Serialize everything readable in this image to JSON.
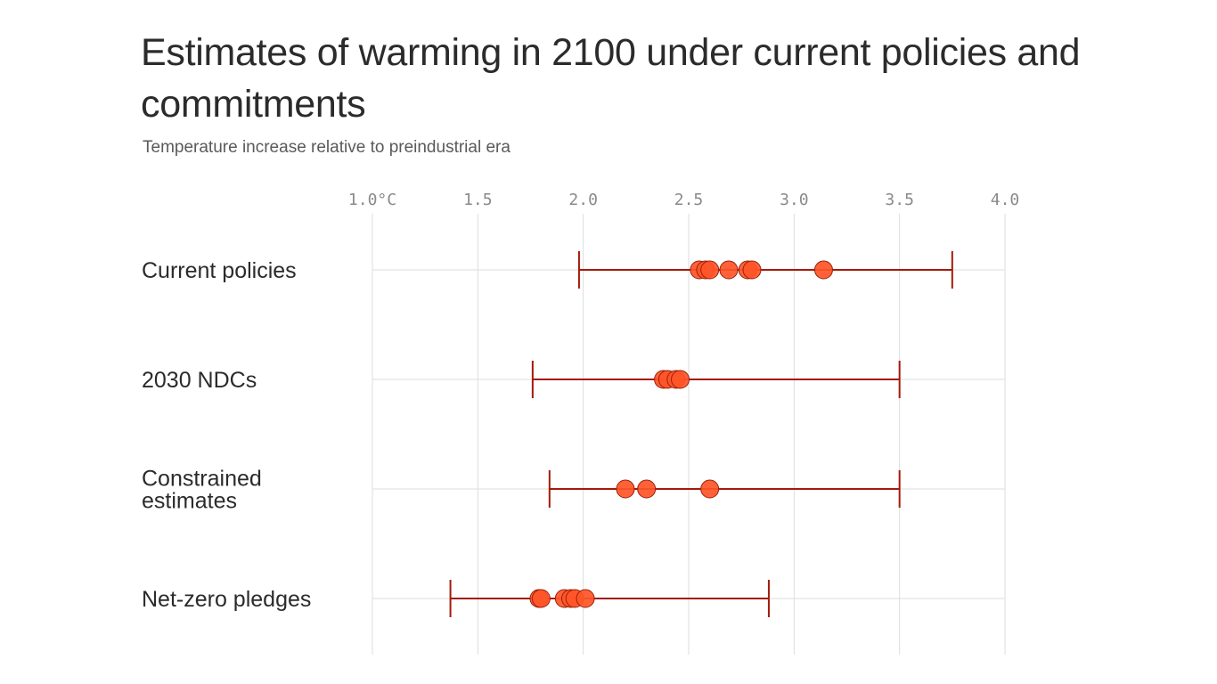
{
  "title": "Estimates of warming in 2100 under current policies and commitments",
  "subtitle": "Temperature increase relative to preindustrial era",
  "colors": {
    "marker_fill": "#ff5528",
    "marker_stroke": "#9b1e0a",
    "range_line": "#a31a0a",
    "grid": "#dddddd",
    "text": "#2b2b2b",
    "tick_text": "#8a8a8a"
  },
  "chart_data": {
    "type": "scatter",
    "title": "Estimates of warming in 2100 under current policies and commitments",
    "subtitle": "Temperature increase relative to preindustrial era",
    "x_ticks": [
      1.0,
      1.5,
      2.0,
      2.5,
      3.0,
      3.5,
      4.0
    ],
    "x_tick_labels": [
      "1.0°C",
      "1.5",
      "2.0",
      "2.5",
      "3.0",
      "3.5",
      "4.0"
    ],
    "xlim": [
      1.0,
      4.0
    ],
    "grid": true,
    "categories": [
      {
        "label_lines": [
          "Current policies"
        ],
        "range": [
          1.98,
          3.75
        ],
        "estimates": [
          2.55,
          2.58,
          2.6,
          2.69,
          2.78,
          2.8,
          3.14
        ]
      },
      {
        "label_lines": [
          "2030 NDCs"
        ],
        "range": [
          1.76,
          3.5
        ],
        "estimates": [
          2.38,
          2.4,
          2.44,
          2.46
        ]
      },
      {
        "label_lines": [
          "Constrained",
          "estimates"
        ],
        "range": [
          1.84,
          3.5
        ],
        "estimates": [
          2.2,
          2.3,
          2.6
        ]
      },
      {
        "label_lines": [
          "Net-zero pledges"
        ],
        "range": [
          1.37,
          2.88
        ],
        "estimates": [
          1.79,
          1.8,
          1.91,
          1.94,
          1.96,
          2.01
        ]
      }
    ]
  }
}
